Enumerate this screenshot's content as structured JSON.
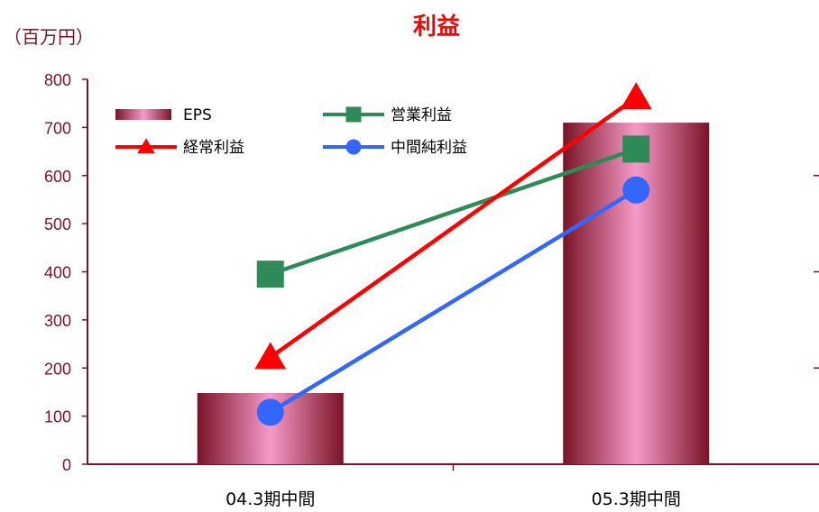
{
  "chart_data": {
    "type": "bar+line",
    "title": "利益",
    "unit_label": "（百万円）",
    "categories": [
      "04.3期中間",
      "05.3期中間"
    ],
    "ylim": [
      0,
      800
    ],
    "yticks": [
      0,
      100,
      200,
      300,
      400,
      500,
      600,
      700,
      800
    ],
    "bar_series": {
      "name": "EPS",
      "values": [
        148,
        710
      ],
      "colors": {
        "edge": "#7a1326",
        "center": "#f59ac8"
      }
    },
    "line_series": [
      {
        "name": "営業利益",
        "values": [
          395,
          655
        ],
        "marker": "square",
        "color": "#2e8b57"
      },
      {
        "name": "経常利益",
        "values": [
          222,
          762
        ],
        "marker": "triangle",
        "color": "#ff0000"
      },
      {
        "name": "中間純利益",
        "values": [
          108,
          570
        ],
        "marker": "circle",
        "color": "#3366ff"
      }
    ],
    "legend_position": "top-left",
    "grid": false,
    "axis_color": "#7a1326",
    "text_color": "#7a1326",
    "title_color": "#ff0000"
  }
}
